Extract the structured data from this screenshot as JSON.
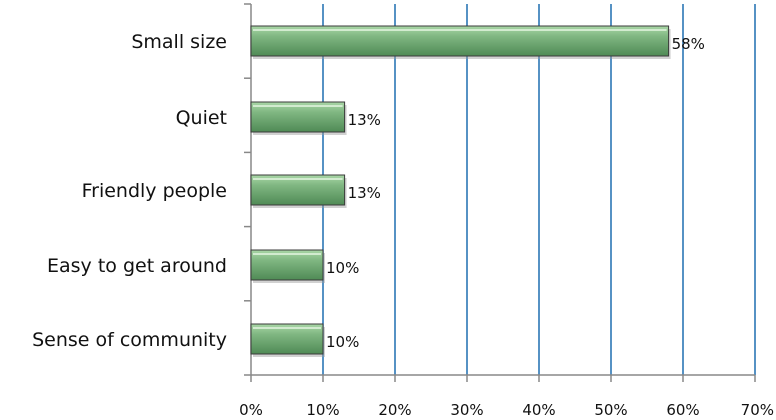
{
  "chart_data": {
    "type": "bar",
    "orientation": "horizontal",
    "categories": [
      "Small size",
      "Quiet",
      "Friendly people",
      "Easy to get around",
      "Sense of community"
    ],
    "values": [
      58,
      13,
      13,
      10,
      10
    ],
    "value_labels": [
      "58%",
      "13%",
      "13%",
      "10%",
      "10%"
    ],
    "x_ticks": [
      "0%",
      "10%",
      "20%",
      "30%",
      "40%",
      "50%",
      "60%",
      "70%"
    ],
    "xlim": [
      0,
      70
    ],
    "grid": "vertical",
    "legend": "none",
    "title": "",
    "xlabel": "",
    "ylabel": "",
    "colors": {
      "bar_fill_light": "#a9d7a6",
      "bar_fill_mid": "#7fb681",
      "bar_fill_dark": "#4f8a55",
      "bar_edge": "#3b3b3b",
      "gridline": "#1f6eb0",
      "axis": "#888888"
    }
  }
}
